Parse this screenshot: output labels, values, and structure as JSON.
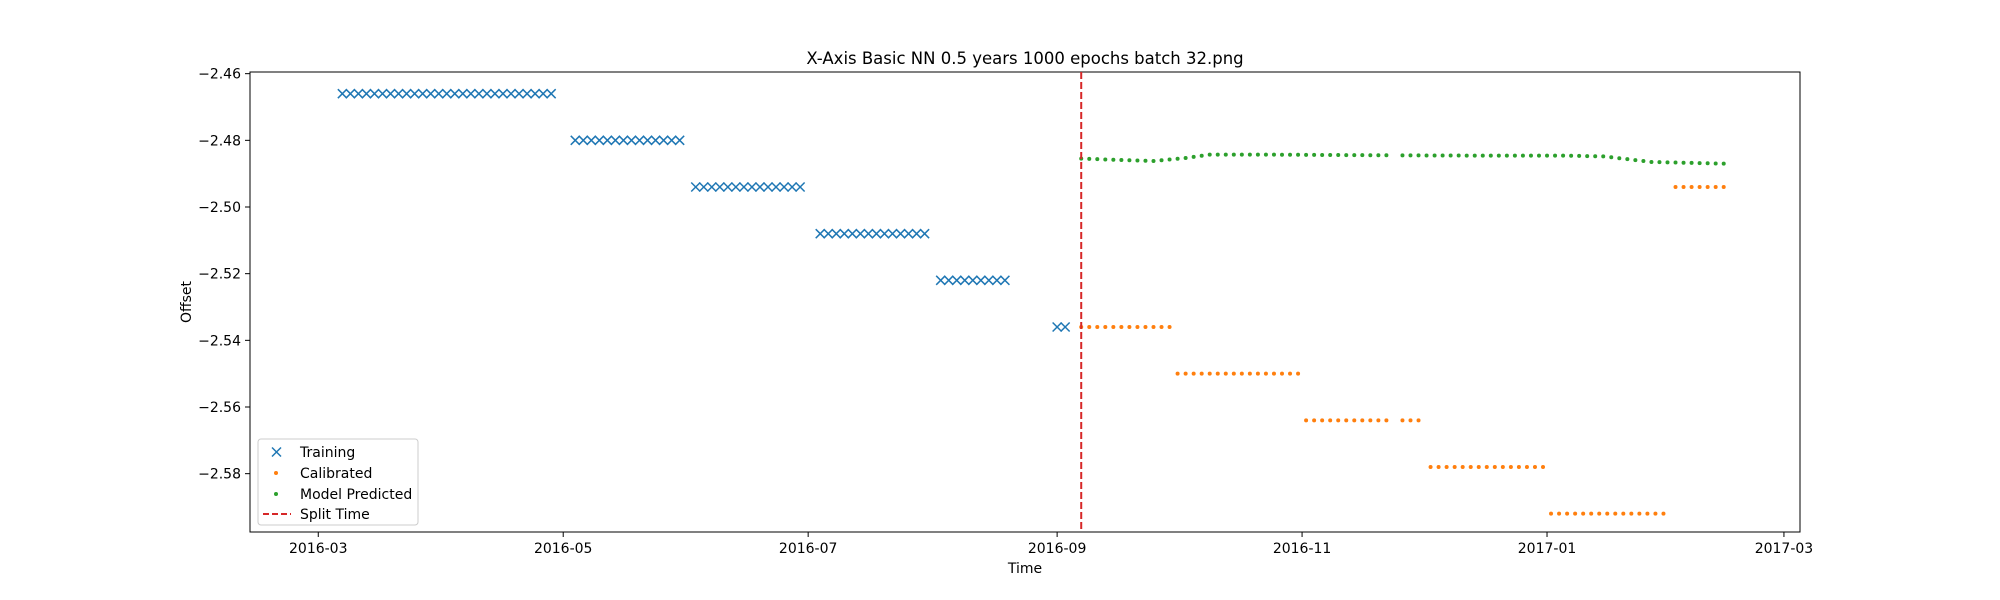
{
  "chart_data": {
    "type": "scatter",
    "title": "X-Axis Basic NN 0.5 years 1000 epochs batch 32.png",
    "xlabel": "Time",
    "ylabel": "Offset",
    "xlim": [
      "2016-02-13",
      "2017-03-05"
    ],
    "ylim": [
      -2.5975,
      -2.4595
    ],
    "x_ticks": [
      "2016-03",
      "2016-05",
      "2016-07",
      "2016-09",
      "2016-11",
      "2017-01",
      "2017-03"
    ],
    "y_ticks": [
      -2.46,
      -2.48,
      -2.5,
      -2.52,
      -2.54,
      -2.56,
      -2.58
    ],
    "y_tick_labels": [
      "−2.46",
      "−2.48",
      "−2.50",
      "−2.52",
      "−2.54",
      "−2.56",
      "−2.58"
    ],
    "legend_position": "lower-left",
    "grid": false,
    "split_time": "2016-09-07",
    "series": [
      {
        "name": "Training",
        "marker": "x",
        "color": "#1f77b4",
        "segments": [
          {
            "start": "2016-03-07",
            "end": "2016-04-29",
            "step_days": 2,
            "y": -2.466
          },
          {
            "start": "2016-05-04",
            "end": "2016-05-30",
            "step_days": 2,
            "y": -2.48
          },
          {
            "start": "2016-06-03",
            "end": "2016-06-29",
            "step_days": 2,
            "y": -2.494
          },
          {
            "start": "2016-07-04",
            "end": "2016-07-30",
            "step_days": 2,
            "y": -2.508
          },
          {
            "start": "2016-08-03",
            "end": "2016-08-19",
            "step_days": 2,
            "y": -2.522
          },
          {
            "start": "2016-09-01",
            "end": "2016-09-03",
            "step_days": 2,
            "y": -2.536
          }
        ]
      },
      {
        "name": "Calibrated",
        "marker": "dot",
        "color": "#ff7f0e",
        "segments": [
          {
            "start": "2016-09-07",
            "end": "2016-09-29",
            "step_days": 2,
            "y": -2.536
          },
          {
            "start": "2016-10-01",
            "end": "2016-10-31",
            "step_days": 2,
            "y": -2.55
          },
          {
            "start": "2016-11-02",
            "end": "2016-11-22",
            "step_days": 2,
            "y": -2.564
          },
          {
            "start": "2016-11-26",
            "end": "2016-11-30",
            "step_days": 2,
            "y": -2.564
          },
          {
            "start": "2016-12-03",
            "end": "2016-12-31",
            "step_days": 2,
            "y": -2.578
          },
          {
            "start": "2017-01-02",
            "end": "2017-01-31",
            "step_days": 2,
            "y": -2.592
          },
          {
            "start": "2017-02-02",
            "end": "2017-02-14",
            "step_days": 2,
            "y": -2.494
          }
        ]
      },
      {
        "name": "Model Predicted",
        "marker": "dot",
        "color": "#2ca02c",
        "step_days": 2,
        "anchors": [
          [
            "2016-09-07",
            -2.4855
          ],
          [
            "2016-09-25",
            -2.4862
          ],
          [
            "2016-10-03",
            -2.4853
          ],
          [
            "2016-10-09",
            -2.4843
          ],
          [
            "2016-10-25",
            -2.4843
          ],
          [
            "2016-11-23",
            -2.4845
          ],
          [
            "2016-12-20",
            -2.4846
          ],
          [
            "2017-01-05",
            -2.4846
          ],
          [
            "2017-01-15",
            -2.4848
          ],
          [
            "2017-01-27",
            -2.4865
          ],
          [
            "2017-02-14",
            -2.487
          ]
        ],
        "gaps": [
          [
            "2016-11-23",
            "2016-11-25"
          ]
        ]
      }
    ],
    "reference_lines": [
      {
        "name": "Split Time",
        "style": "dashed",
        "color": "#d62728",
        "x": "2016-09-07"
      }
    ]
  }
}
